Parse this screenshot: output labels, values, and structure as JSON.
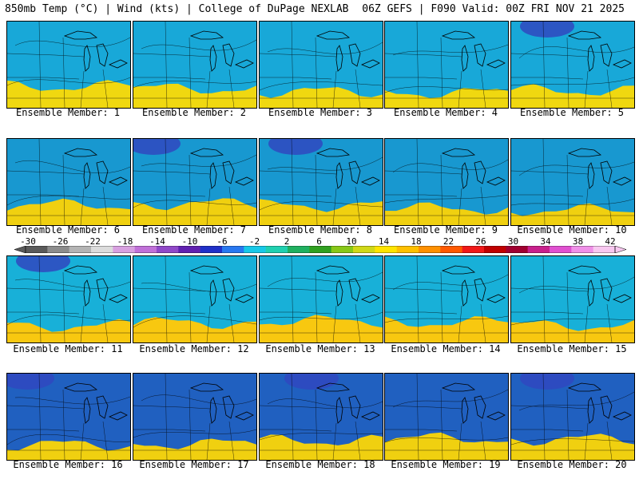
{
  "header": {
    "left": "850mb Temp (°C) | Wind (kts) | College of DuPage NEXLAB",
    "right": "06Z GEFS | F090 Valid: 00Z FRI NOV 21 2025"
  },
  "panels": [
    {
      "label": "Ensemble Member: 1"
    },
    {
      "label": "Ensemble Member: 2"
    },
    {
      "label": "Ensemble Member: 3"
    },
    {
      "label": "Ensemble Member: 4"
    },
    {
      "label": "Ensemble Member: 5"
    },
    {
      "label": "Ensemble Member: 6"
    },
    {
      "label": "Ensemble Member: 7"
    },
    {
      "label": "Ensemble Member: 8"
    },
    {
      "label": "Ensemble Member: 9"
    },
    {
      "label": "Ensemble Member: 10"
    },
    {
      "label": "Ensemble Member: 11"
    },
    {
      "label": "Ensemble Member: 12"
    },
    {
      "label": "Ensemble Member: 13"
    },
    {
      "label": "Ensemble Member: 14"
    },
    {
      "label": "Ensemble Member: 15"
    },
    {
      "label": "Ensemble Member: 16"
    },
    {
      "label": "Ensemble Member: 17"
    },
    {
      "label": "Ensemble Member: 18"
    },
    {
      "label": "Ensemble Member: 19"
    },
    {
      "label": "Ensemble Member: 20"
    }
  ],
  "colorbar": {
    "ticks": [
      "-30",
      "-26",
      "-22",
      "-18",
      "-14",
      "-10",
      "-6",
      "-2",
      "2",
      "6",
      "10",
      "14",
      "18",
      "22",
      "26",
      "30",
      "34",
      "38",
      "42"
    ],
    "colors": [
      "#5a5a5a",
      "#8c8c8c",
      "#b4b4b4",
      "#dcdcdc",
      "#d8a0e0",
      "#c070d8",
      "#9048c8",
      "#6020b0",
      "#2030c8",
      "#2878f0",
      "#18c8e8",
      "#20d0b0",
      "#20b060",
      "#30a020",
      "#88c818",
      "#d0d818",
      "#ffe400",
      "#ffc000",
      "#ff9000",
      "#ff5800",
      "#f01818",
      "#c00000",
      "#a00030",
      "#c8208c",
      "#e050d0",
      "#f090e8",
      "#f8c8f0"
    ]
  }
}
